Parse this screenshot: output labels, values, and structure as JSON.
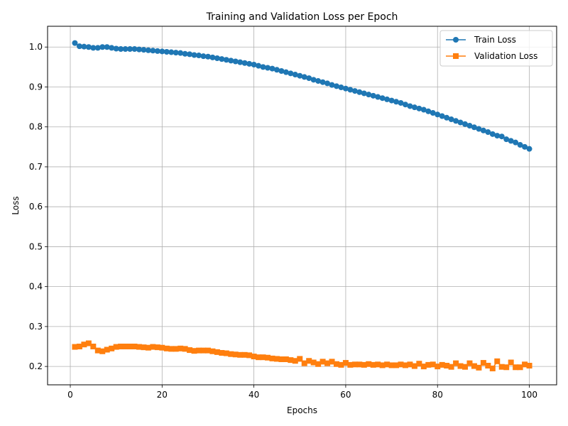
{
  "chart_data": {
    "type": "line",
    "title": "Training and Validation Loss per Epoch",
    "xlabel": "Epochs",
    "ylabel": "Loss",
    "xlim": [
      -4.95,
      105.95
    ],
    "ylim": [
      0.154,
      1.052
    ],
    "xticks": [
      0,
      20,
      40,
      60,
      80,
      100
    ],
    "yticks": [
      0.2,
      0.3,
      0.4,
      0.5,
      0.6,
      0.7,
      0.8,
      0.9,
      1.0
    ],
    "xtick_labels": [
      "0",
      "20",
      "40",
      "60",
      "80",
      "100"
    ],
    "ytick_labels": [
      "0.2",
      "0.3",
      "0.4",
      "0.5",
      "0.6",
      "0.7",
      "0.8",
      "0.9",
      "1.0"
    ],
    "grid": true,
    "legend_position": "top-right",
    "series": [
      {
        "name": "Train Loss",
        "color": "#1f77b4",
        "marker": "circle",
        "x": [
          1,
          2,
          3,
          4,
          5,
          6,
          7,
          8,
          9,
          10,
          11,
          12,
          13,
          14,
          15,
          16,
          17,
          18,
          19,
          20,
          21,
          22,
          23,
          24,
          25,
          26,
          27,
          28,
          29,
          30,
          31,
          32,
          33,
          34,
          35,
          36,
          37,
          38,
          39,
          40,
          41,
          42,
          43,
          44,
          45,
          46,
          47,
          48,
          49,
          50,
          51,
          52,
          53,
          54,
          55,
          56,
          57,
          58,
          59,
          60,
          61,
          62,
          63,
          64,
          65,
          66,
          67,
          68,
          69,
          70,
          71,
          72,
          73,
          74,
          75,
          76,
          77,
          78,
          79,
          80,
          81,
          82,
          83,
          84,
          85,
          86,
          87,
          88,
          89,
          90,
          91,
          92,
          93,
          94,
          95,
          96,
          97,
          98,
          99,
          100
        ],
        "values": [
          1.01,
          1.002,
          1.001,
          1.0,
          0.998,
          0.998,
          1.0,
          1.0,
          0.998,
          0.996,
          0.995,
          0.995,
          0.995,
          0.995,
          0.994,
          0.993,
          0.992,
          0.991,
          0.99,
          0.989,
          0.988,
          0.987,
          0.986,
          0.985,
          0.983,
          0.982,
          0.98,
          0.979,
          0.977,
          0.976,
          0.974,
          0.972,
          0.97,
          0.968,
          0.966,
          0.964,
          0.962,
          0.96,
          0.958,
          0.956,
          0.953,
          0.95,
          0.948,
          0.946,
          0.943,
          0.94,
          0.937,
          0.934,
          0.931,
          0.928,
          0.925,
          0.922,
          0.918,
          0.915,
          0.912,
          0.909,
          0.905,
          0.902,
          0.899,
          0.896,
          0.893,
          0.89,
          0.887,
          0.884,
          0.881,
          0.878,
          0.875,
          0.872,
          0.869,
          0.866,
          0.863,
          0.86,
          0.856,
          0.852,
          0.849,
          0.846,
          0.843,
          0.839,
          0.835,
          0.831,
          0.827,
          0.823,
          0.819,
          0.815,
          0.811,
          0.807,
          0.803,
          0.799,
          0.795,
          0.791,
          0.787,
          0.782,
          0.778,
          0.776,
          0.769,
          0.765,
          0.761,
          0.755,
          0.75,
          0.745
        ]
      },
      {
        "name": "Validation Loss",
        "color": "#ff7f0e",
        "marker": "square",
        "x": [
          1,
          2,
          3,
          4,
          5,
          6,
          7,
          8,
          9,
          10,
          11,
          12,
          13,
          14,
          15,
          16,
          17,
          18,
          19,
          20,
          21,
          22,
          23,
          24,
          25,
          26,
          27,
          28,
          29,
          30,
          31,
          32,
          33,
          34,
          35,
          36,
          37,
          38,
          39,
          40,
          41,
          42,
          43,
          44,
          45,
          46,
          47,
          48,
          49,
          50,
          51,
          52,
          53,
          54,
          55,
          56,
          57,
          58,
          59,
          60,
          61,
          62,
          63,
          64,
          65,
          66,
          67,
          68,
          69,
          70,
          71,
          72,
          73,
          74,
          75,
          76,
          77,
          78,
          79,
          80,
          81,
          82,
          83,
          84,
          85,
          86,
          87,
          88,
          89,
          90,
          91,
          92,
          93,
          94,
          95,
          96,
          97,
          98,
          99,
          100
        ],
        "values": [
          0.249,
          0.25,
          0.255,
          0.258,
          0.25,
          0.24,
          0.238,
          0.242,
          0.245,
          0.249,
          0.25,
          0.25,
          0.25,
          0.25,
          0.249,
          0.248,
          0.247,
          0.249,
          0.248,
          0.247,
          0.245,
          0.244,
          0.244,
          0.245,
          0.244,
          0.241,
          0.239,
          0.24,
          0.24,
          0.24,
          0.238,
          0.236,
          0.234,
          0.233,
          0.231,
          0.23,
          0.229,
          0.229,
          0.228,
          0.225,
          0.223,
          0.223,
          0.222,
          0.22,
          0.219,
          0.218,
          0.218,
          0.216,
          0.214,
          0.219,
          0.208,
          0.214,
          0.21,
          0.206,
          0.212,
          0.208,
          0.212,
          0.206,
          0.204,
          0.209,
          0.204,
          0.205,
          0.205,
          0.204,
          0.206,
          0.204,
          0.205,
          0.203,
          0.205,
          0.203,
          0.203,
          0.205,
          0.203,
          0.205,
          0.201,
          0.207,
          0.2,
          0.204,
          0.205,
          0.2,
          0.204,
          0.202,
          0.199,
          0.208,
          0.201,
          0.199,
          0.208,
          0.201,
          0.197,
          0.209,
          0.202,
          0.195,
          0.213,
          0.199,
          0.198,
          0.21,
          0.198,
          0.198,
          0.205,
          0.202
        ]
      }
    ]
  }
}
